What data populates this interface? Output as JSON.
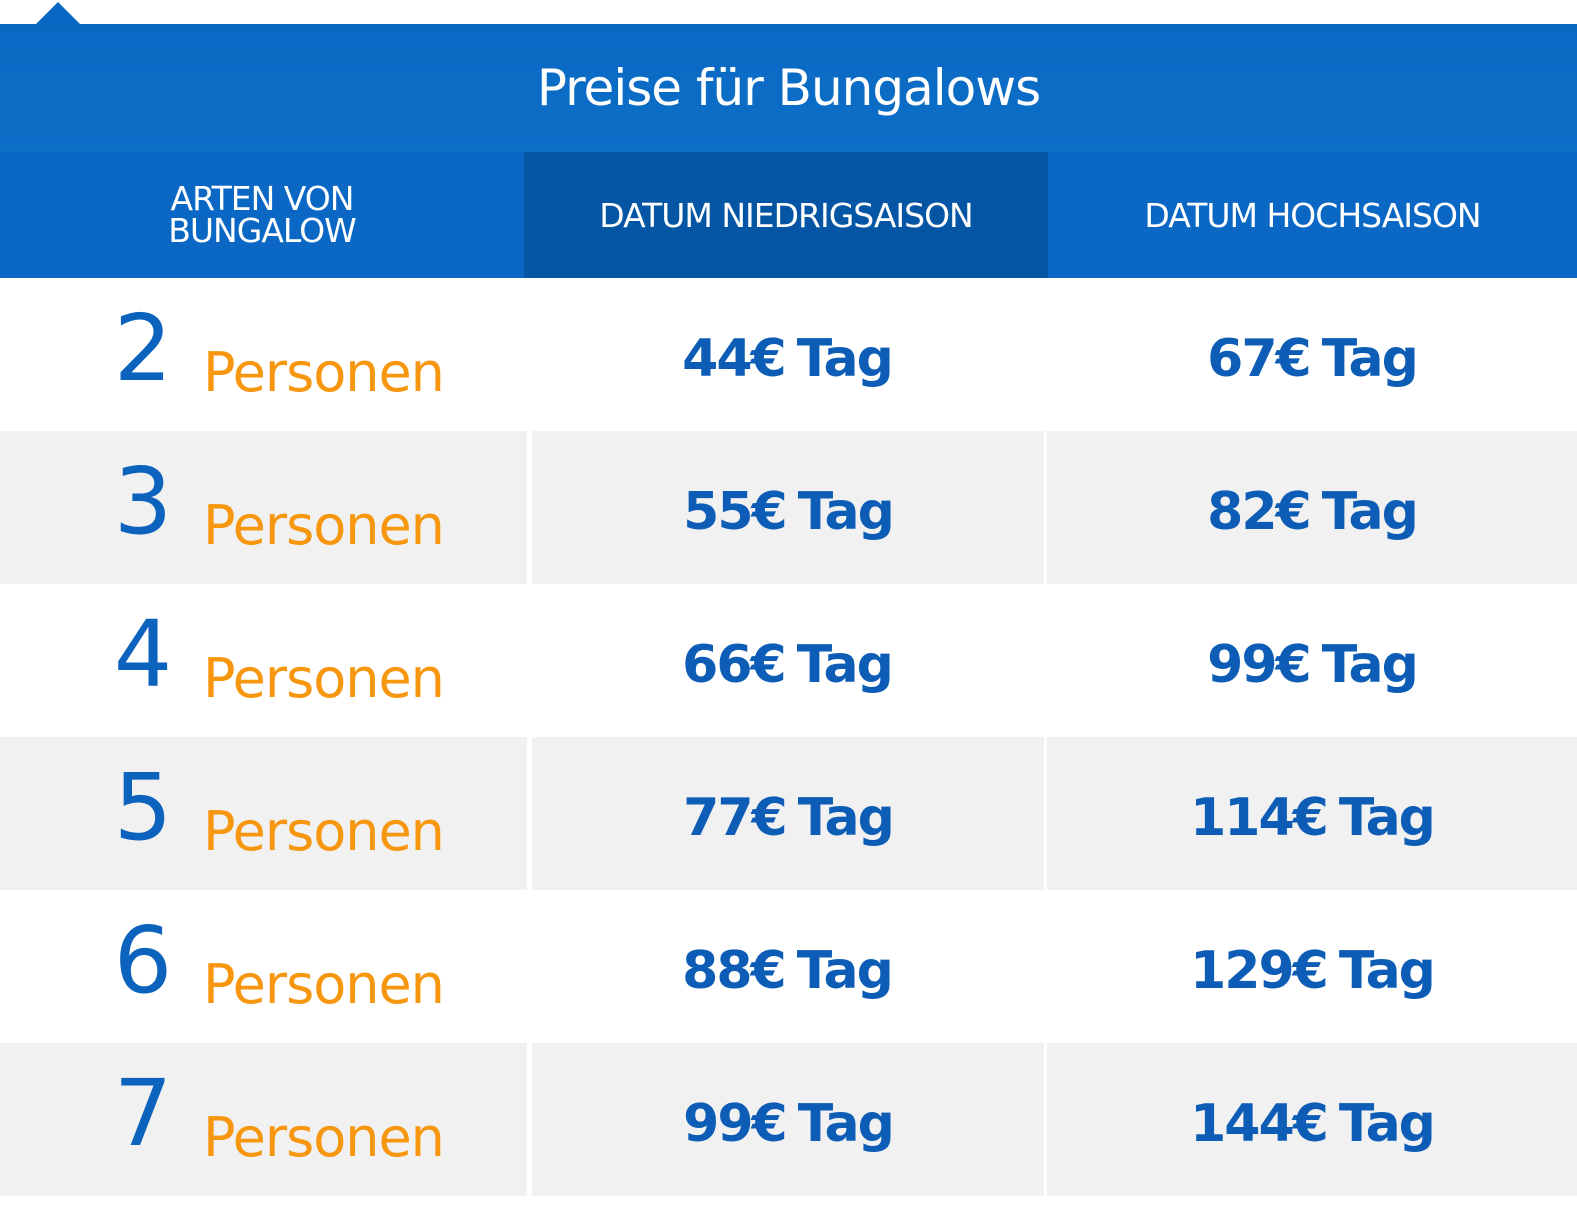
{
  "title": "Preise für Bungalows",
  "headers": {
    "type": [
      "ARTEN VON",
      "BUNGALOW"
    ],
    "low_season": "DATUM NIEDRIGSAISON",
    "high_season": "DATUM HOCHSAISON"
  },
  "rows": [
    {
      "count": "2",
      "label": "Personen",
      "low": "44€",
      "high": "67€",
      "unit": "Tag"
    },
    {
      "count": "3",
      "label": "Personen",
      "low": "55€",
      "high": "82€",
      "unit": "Tag"
    },
    {
      "count": "4",
      "label": "Personen",
      "low": "66€",
      "high": "99€",
      "unit": "Tag"
    },
    {
      "count": "5",
      "label": "Personen",
      "low": "77€",
      "high": "114€",
      "unit": "Tag"
    },
    {
      "count": "6",
      "label": "Personen",
      "low": "88€",
      "high": "129€",
      "unit": "Tag"
    },
    {
      "count": "7",
      "label": "Personen",
      "low": "99€",
      "high": "144€",
      "unit": "Tag"
    }
  ],
  "colors": {
    "header_blue": "#0a67c4",
    "header_dark_blue": "#0456a4",
    "number_blue": "#0c63bd",
    "label_orange": "#f7960f",
    "alt_row": "#f1f1f1"
  }
}
